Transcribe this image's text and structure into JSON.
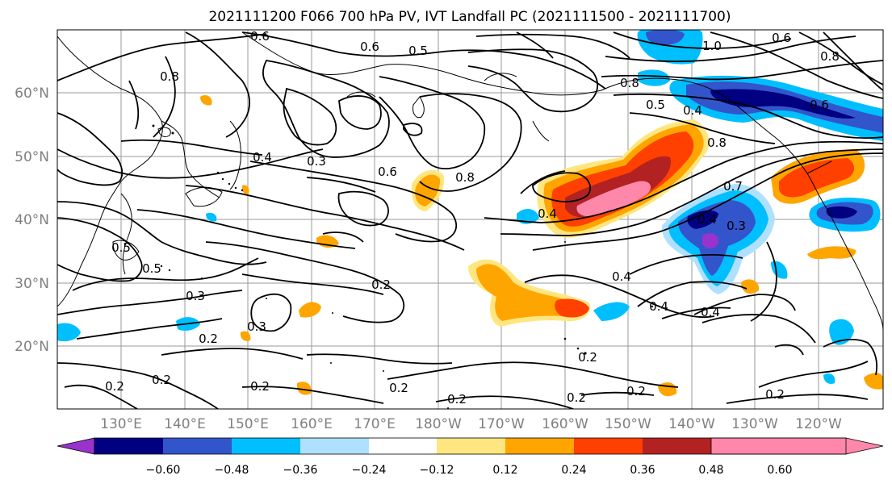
{
  "title": "2021111200 F066 700 hPa PV, IVT Landfall PC (2021111500 - 2021111700)",
  "lat_labels": [
    "60°N",
    "50°N",
    "40°N",
    "30°N",
    "20°N"
  ],
  "lon_labels": [
    "130°E",
    "140°E",
    "150°E",
    "160°E",
    "170°E",
    "180°W",
    "170°W",
    "160°W",
    "150°W",
    "140°W",
    "130°W",
    "120°W"
  ],
  "colorbar": {
    "tick_labels": [
      "−0.60",
      "−0.48",
      "−0.36",
      "−0.24",
      "−0.12",
      "0.12",
      "0.24",
      "0.36",
      "0.48",
      "0.60"
    ],
    "colors": [
      "#9933cc",
      "#000080",
      "#3355cc",
      "#00bfff",
      "#b0e0ff",
      "#ffffff",
      "#ffe680",
      "#ffa500",
      "#ff4000",
      "#b22222",
      "#ff88aa"
    ]
  },
  "contour_labels": [
    "0.6",
    "0.5",
    "0.6",
    "0.8",
    "1.0",
    "0.6",
    "0.8",
    "0.8",
    "0.5",
    "0.4",
    "0.6",
    "0.8",
    "0.4",
    "0.3",
    "0.6",
    "0.8",
    "0.7",
    "0.4",
    "0.5",
    "0.5",
    "0.3",
    "0.2",
    "0.3",
    "0.2",
    "0.4",
    "0.4",
    "0.3",
    "0.4",
    "0.4",
    "0.2",
    "0.2",
    "0.2",
    "0.2",
    "0.2",
    "0.2",
    "0.2",
    "0.2",
    "0.2"
  ]
}
